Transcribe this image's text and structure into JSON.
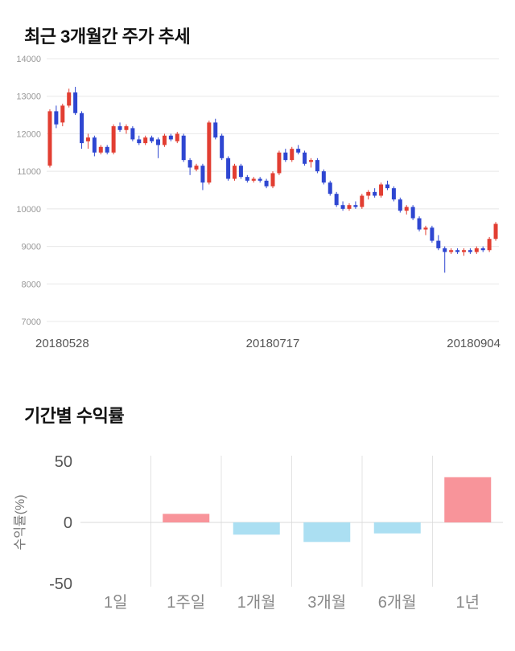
{
  "price_section": {
    "title": "최근 3개월간 주가 추세"
  },
  "returns_section": {
    "title": "기간별 수익률"
  },
  "chart_data": [
    {
      "type": "candlestick",
      "title": "최근 3개월간 주가 추세",
      "ylim": [
        7000,
        14000
      ],
      "yticks": [
        14000,
        13000,
        12000,
        11000,
        10000,
        9000,
        8000,
        7000
      ],
      "xticklabels": [
        "20180528",
        "20180717",
        "20180904"
      ],
      "grid": "horizontal",
      "up_color": "#e23e32",
      "down_color": "#2e46d1",
      "grid_color": "#e8e8e8",
      "ytick_color": "#999999",
      "xtick_color": "#555555",
      "candles": [
        [
          11150,
          12650,
          11100,
          12600
        ],
        [
          12600,
          12750,
          12150,
          12250
        ],
        [
          12300,
          12800,
          12200,
          12750
        ],
        [
          12750,
          13200,
          12700,
          13100
        ],
        [
          13100,
          13250,
          12500,
          12550
        ],
        [
          12550,
          12600,
          11600,
          11750
        ],
        [
          11800,
          12000,
          11600,
          11900
        ],
        [
          11900,
          11950,
          11400,
          11500
        ],
        [
          11500,
          11700,
          11450,
          11650
        ],
        [
          11650,
          11700,
          11450,
          11500
        ],
        [
          11500,
          12250,
          11450,
          12200
        ],
        [
          12200,
          12300,
          12050,
          12100
        ],
        [
          12100,
          12250,
          12000,
          12200
        ],
        [
          12150,
          12200,
          11800,
          11850
        ],
        [
          11850,
          11950,
          11700,
          11750
        ],
        [
          11750,
          11950,
          11700,
          11900
        ],
        [
          11900,
          11950,
          11750,
          11800
        ],
        [
          11850,
          11900,
          11350,
          11700
        ],
        [
          11700,
          12000,
          11650,
          11950
        ],
        [
          11950,
          12000,
          11800,
          11850
        ],
        [
          11800,
          12050,
          11750,
          12000
        ],
        [
          11950,
          12000,
          11250,
          11300
        ],
        [
          11300,
          11350,
          10900,
          11100
        ],
        [
          11050,
          11200,
          11000,
          11150
        ],
        [
          11150,
          11200,
          10500,
          10700
        ],
        [
          10700,
          12350,
          10650,
          12300
        ],
        [
          12300,
          12400,
          11850,
          11900
        ],
        [
          11950,
          12000,
          11300,
          11350
        ],
        [
          11350,
          11400,
          10750,
          10800
        ],
        [
          10800,
          11200,
          10750,
          11150
        ],
        [
          11150,
          11200,
          10800,
          10850
        ],
        [
          10850,
          10900,
          10700,
          10750
        ],
        [
          10750,
          10850,
          10700,
          10800
        ],
        [
          10800,
          10850,
          10700,
          10750
        ],
        [
          10750,
          10800,
          10550,
          10600
        ],
        [
          10600,
          11000,
          10550,
          10950
        ],
        [
          10950,
          11550,
          10900,
          11500
        ],
        [
          11500,
          11600,
          11250,
          11300
        ],
        [
          11300,
          11650,
          11250,
          11600
        ],
        [
          11600,
          11700,
          11450,
          11500
        ],
        [
          11500,
          11550,
          11150,
          11200
        ],
        [
          11250,
          11350,
          11100,
          11300
        ],
        [
          11300,
          11350,
          10950,
          11000
        ],
        [
          11000,
          11050,
          10650,
          10700
        ],
        [
          10700,
          10750,
          10350,
          10400
        ],
        [
          10400,
          10450,
          10050,
          10100
        ],
        [
          10100,
          10200,
          9950,
          10000
        ],
        [
          10000,
          10150,
          9950,
          10100
        ],
        [
          10100,
          10200,
          10000,
          10050
        ],
        [
          10050,
          10400,
          10000,
          10350
        ],
        [
          10350,
          10500,
          10250,
          10450
        ],
        [
          10450,
          10550,
          10300,
          10350
        ],
        [
          10350,
          10700,
          10300,
          10650
        ],
        [
          10650,
          10750,
          10500,
          10550
        ],
        [
          10550,
          10600,
          10200,
          10250
        ],
        [
          10250,
          10300,
          9900,
          9950
        ],
        [
          9950,
          10100,
          9850,
          10050
        ],
        [
          10050,
          10100,
          9700,
          9750
        ],
        [
          9750,
          9800,
          9400,
          9450
        ],
        [
          9450,
          9550,
          9300,
          9500
        ],
        [
          9500,
          9550,
          9100,
          9150
        ],
        [
          9150,
          9300,
          8900,
          8950
        ],
        [
          8950,
          9000,
          8300,
          8850
        ],
        [
          8850,
          8950,
          8800,
          8900
        ],
        [
          8900,
          8950,
          8800,
          8850
        ],
        [
          8850,
          8950,
          8750,
          8900
        ],
        [
          8900,
          8950,
          8800,
          8850
        ],
        [
          8850,
          9000,
          8800,
          8950
        ],
        [
          8950,
          9000,
          8850,
          8900
        ],
        [
          8900,
          9250,
          8850,
          9200
        ],
        [
          9200,
          9650,
          9150,
          9600
        ]
      ]
    },
    {
      "type": "bar",
      "title": "기간별 수익률",
      "categories": [
        "1일",
        "1주일",
        "1개월",
        "3개월",
        "6개월",
        "1년"
      ],
      "values": [
        0,
        7,
        -10,
        -16,
        -9,
        37
      ],
      "ylabel": "수익률(%)",
      "yticks": [
        50,
        0,
        -50
      ],
      "ylim": [
        -50,
        50
      ],
      "grid": "vertical",
      "positive_color": "#f8949a",
      "negative_color": "#abdff2",
      "grid_color": "#e3e3e3",
      "zero_line_color": "#d9d9d9",
      "ytick_color": "#555555",
      "cat_color": "#888888",
      "ylabel_color": "#777777"
    }
  ]
}
